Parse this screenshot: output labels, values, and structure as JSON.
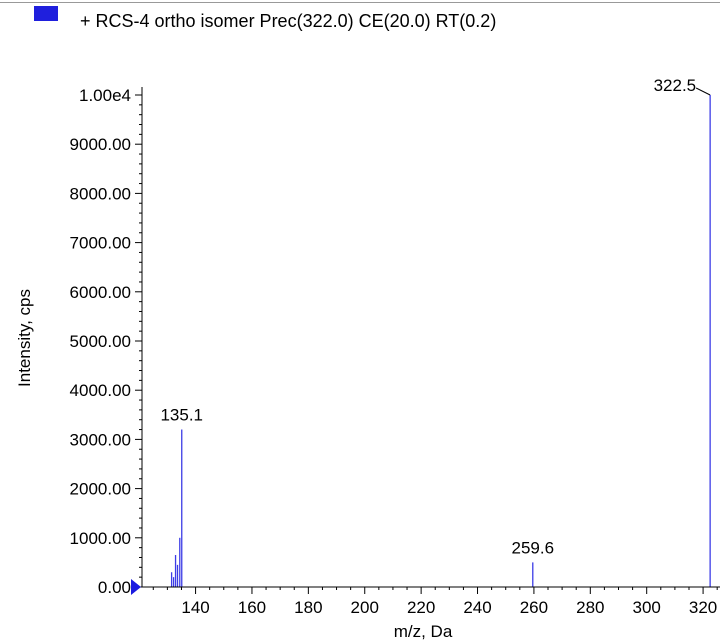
{
  "chart_data": {
    "type": "bar",
    "legend": {
      "label": "+ RCS-4 ortho isomer Prec(322.0) CE(20.0) RT(0.2)",
      "swatch_color": "#1f1fdd",
      "placement": "top-left"
    },
    "xlabel": "m/z, Da",
    "ylabel": "Intensity, cps",
    "xlim": [
      121,
      326
    ],
    "ylim": [
      0,
      10000
    ],
    "x_ticks": [
      140,
      160,
      180,
      200,
      220,
      240,
      260,
      280,
      300,
      320
    ],
    "x_tick_labels": [
      "140",
      "160",
      "180",
      "200",
      "220",
      "240",
      "260",
      "280",
      "300",
      "320"
    ],
    "y_ticks": [
      0,
      1000,
      2000,
      3000,
      4000,
      5000,
      6000,
      7000,
      8000,
      9000,
      10000
    ],
    "y_tick_labels": [
      "0.00",
      "1000.00",
      "2000.00",
      "3000.00",
      "4000.00",
      "5000.00",
      "6000.00",
      "7000.00",
      "8000.00",
      "9000.00",
      "1.00e4"
    ],
    "series": [
      {
        "color": "#3c3ce6",
        "peaks": [
          {
            "x": 131.5,
            "y": 300
          },
          {
            "x": 132.2,
            "y": 200
          },
          {
            "x": 132.9,
            "y": 650
          },
          {
            "x": 133.6,
            "y": 450
          },
          {
            "x": 134.4,
            "y": 1000
          },
          {
            "x": 135.1,
            "y": 3200
          },
          {
            "x": 259.6,
            "y": 500
          },
          {
            "x": 322.5,
            "y": 10000
          }
        ]
      }
    ],
    "peak_labels": [
      {
        "x": 135.1,
        "y": 3200,
        "text": "135.1"
      },
      {
        "x": 259.6,
        "y": 500,
        "text": "259.6"
      },
      {
        "x": 322.5,
        "y": 10000,
        "text": "322.5"
      }
    ],
    "marker_color": "#1a1ae0",
    "grid": false
  }
}
